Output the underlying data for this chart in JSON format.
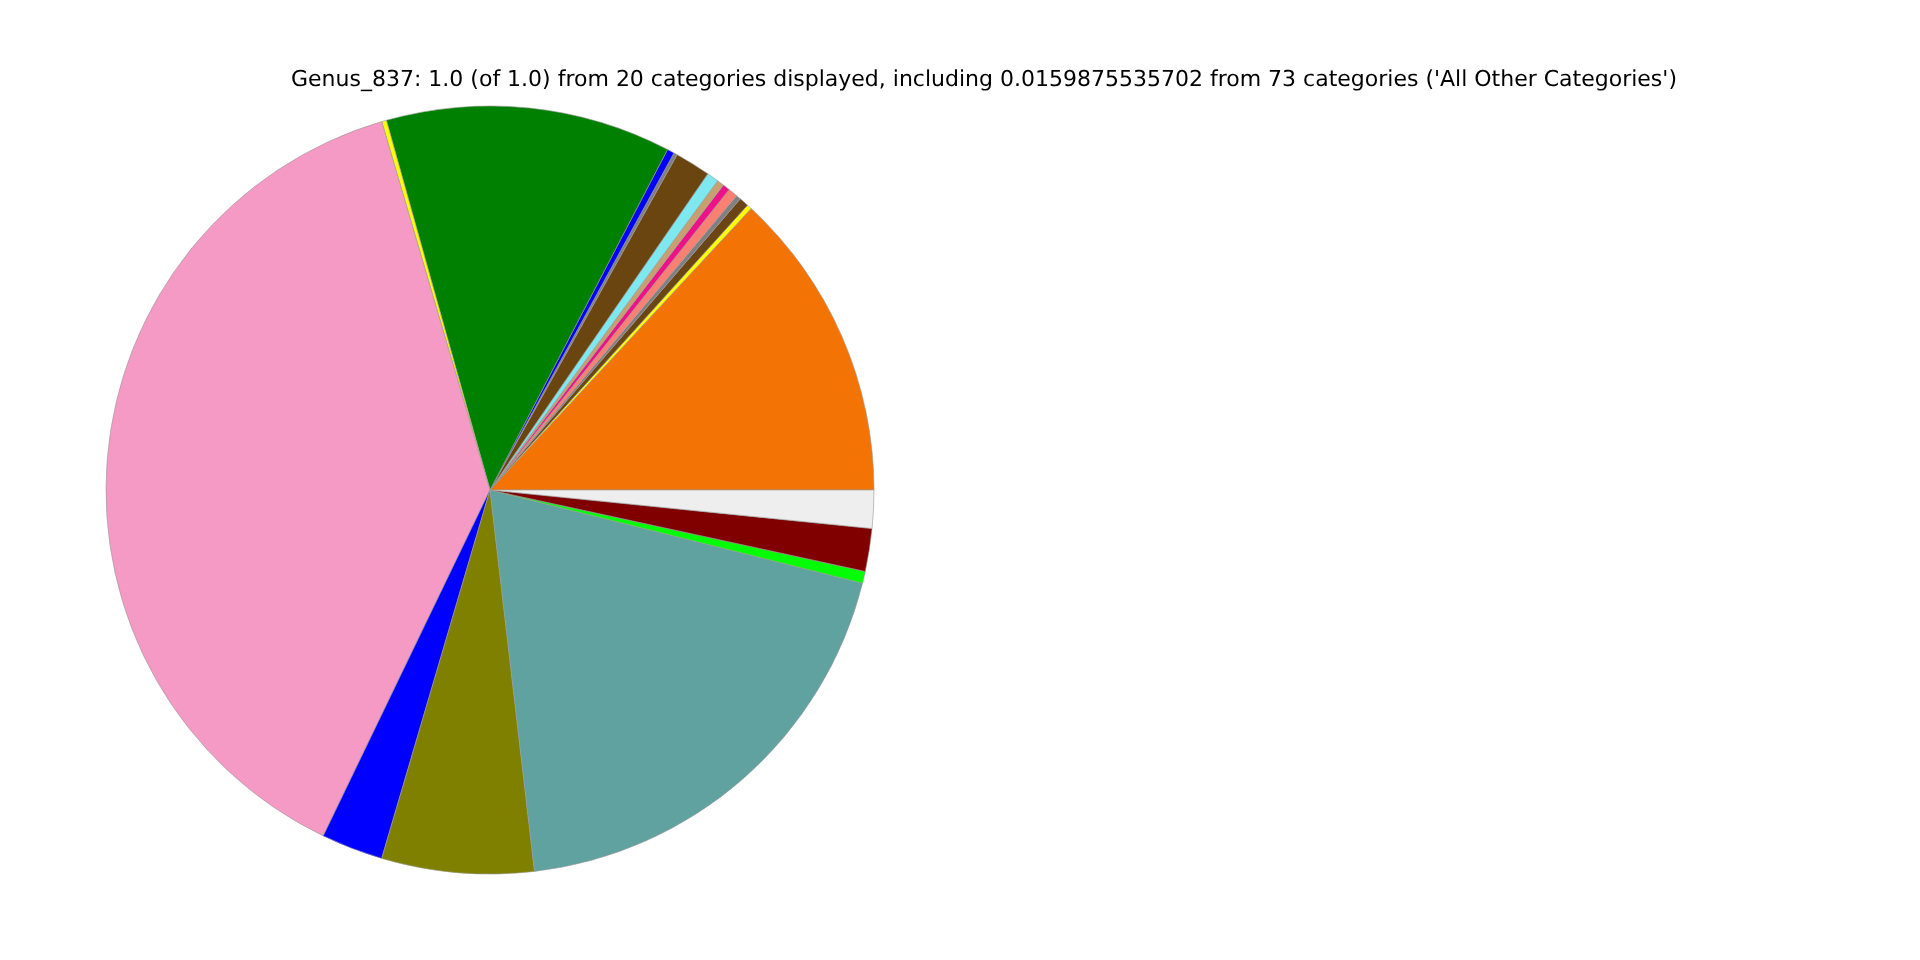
{
  "chart_data": {
    "type": "pie",
    "title": "Genus_837: 1.0 (of 1.0) from 20 categories displayed, including 0.0159875535702 from 73 categories ('All Other Categories')",
    "categories": [
      null,
      null,
      null,
      null,
      null,
      null,
      null,
      null,
      null,
      null,
      null,
      null,
      null,
      null,
      null,
      null,
      null,
      null,
      null,
      null
    ],
    "values": [
      13.1,
      0.2,
      0.4,
      0.2,
      0.4,
      0.3,
      0.3,
      0.5,
      1.5,
      0.15,
      0.3,
      12.0,
      0.2,
      38.3,
      2.6,
      6.4,
      19.25,
      0.5,
      1.8,
      1.6
    ],
    "colors": [
      "#f37404",
      "#ffff00",
      "#6b4513",
      "#808080",
      "#fa8072",
      "#ee1289",
      "#c8a070",
      "#7ee8f0",
      "#6b4510",
      "#808080",
      "#0000ff",
      "#008000",
      "#ffff00",
      "#f49ac4",
      "#0000ff",
      "#808000",
      "#5fa2a0",
      "#00ff00",
      "#800000",
      "#eeeeee"
    ]
  }
}
